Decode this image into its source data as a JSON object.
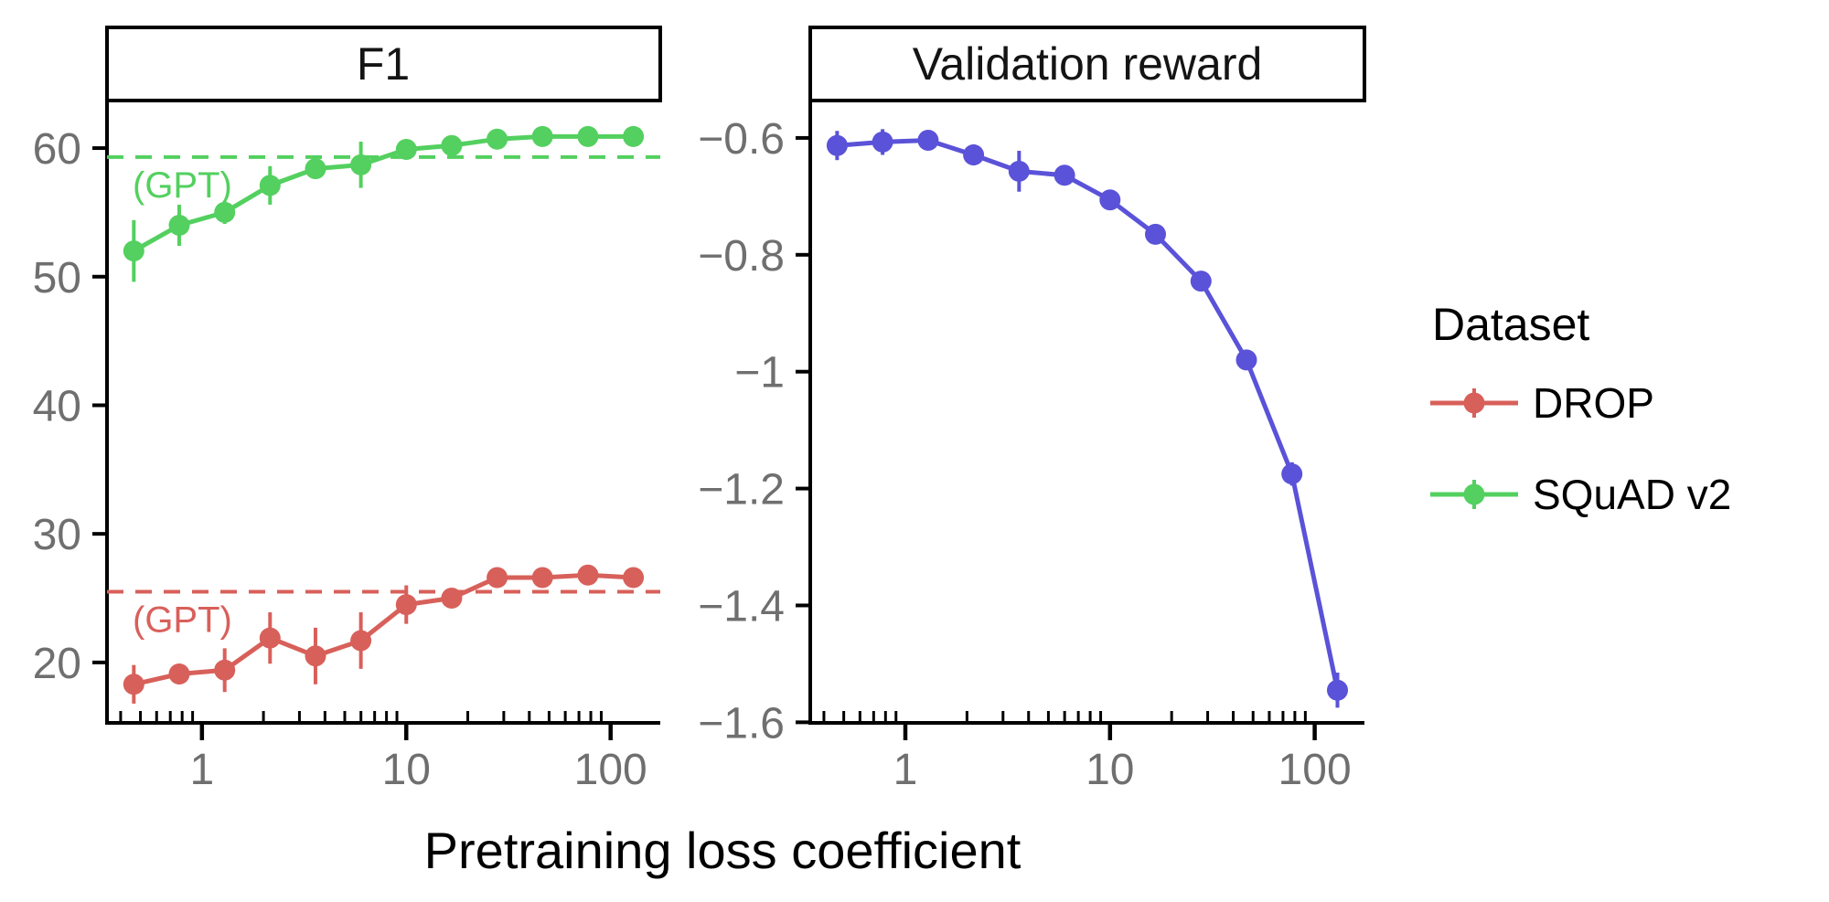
{
  "chart_data": [
    {
      "type": "line",
      "title": "F1",
      "xlabel": "Pretraining loss coefficient",
      "ylabel": "",
      "xscale": "log",
      "grid": false,
      "x": [
        0.464,
        0.774,
        1.292,
        2.154,
        3.594,
        5.995,
        10,
        16.68,
        27.83,
        46.42,
        77.43,
        129.2
      ],
      "xlim": [
        0.343,
        175
      ],
      "xticks": [
        1,
        10,
        100
      ],
      "xtick_labels": [
        "1",
        "10",
        "100"
      ],
      "x_minor_ticks": [
        0.4,
        0.5,
        0.6,
        0.7,
        0.8,
        0.9,
        2,
        3,
        4,
        5,
        6,
        7,
        8,
        9,
        20,
        30,
        40,
        50,
        60,
        70,
        80,
        90
      ],
      "ylim": [
        15.3,
        63.7
      ],
      "yticks": [
        20,
        30,
        40,
        50,
        60
      ],
      "ytick_labels": [
        "20",
        "30",
        "40",
        "50",
        "60"
      ],
      "series": [
        {
          "name": "DROP",
          "color": "#d8605a",
          "values": [
            18.3,
            19.1,
            19.4,
            21.9,
            20.5,
            21.7,
            24.5,
            25.0,
            26.6,
            26.6,
            26.8,
            26.6
          ],
          "errors": [
            1.5,
            0.8,
            1.7,
            2.0,
            2.2,
            2.2,
            1.5,
            0.7,
            0.3,
            0.3,
            0.35,
            0.3
          ],
          "gpt_baseline": 25.5,
          "gpt_label": "(GPT)"
        },
        {
          "name": "SQuAD v2",
          "color": "#53d05f",
          "values": [
            52.0,
            54.0,
            55.0,
            57.1,
            58.4,
            58.7,
            59.9,
            60.2,
            60.7,
            60.9,
            60.9,
            60.9
          ],
          "errors": [
            2.4,
            1.6,
            0.9,
            1.5,
            0.6,
            1.8,
            0.7,
            0.35,
            0.3,
            0.25,
            0.25,
            0.25
          ],
          "gpt_baseline": 59.3,
          "gpt_label": "(GPT)"
        }
      ]
    },
    {
      "type": "line",
      "title": "Validation reward",
      "xlabel": "Pretraining loss coefficient",
      "ylabel": "",
      "xscale": "log",
      "grid": false,
      "x": [
        0.464,
        0.774,
        1.292,
        2.154,
        3.594,
        5.995,
        10,
        16.68,
        27.83,
        46.42,
        77.43,
        129.2
      ],
      "xlim": [
        0.343,
        175
      ],
      "xticks": [
        1,
        10,
        100
      ],
      "xtick_labels": [
        "1",
        "10",
        "100"
      ],
      "x_minor_ticks": [
        0.4,
        0.5,
        0.6,
        0.7,
        0.8,
        0.9,
        2,
        3,
        4,
        5,
        6,
        7,
        8,
        9,
        20,
        30,
        40,
        50,
        60,
        70,
        80,
        90
      ],
      "ylim": [
        -1.601,
        -0.536
      ],
      "yticks": [
        -1.6,
        -1.4,
        -1.2,
        -1.0,
        -0.8,
        -0.6
      ],
      "ytick_labels": [
        "−1.6",
        "−1.4",
        "−1.2",
        "−1",
        "−0.8",
        "−0.6"
      ],
      "series": [
        {
          "name": "Validation reward",
          "color": "#5a52d8",
          "values": [
            -0.613,
            -0.607,
            -0.604,
            -0.629,
            -0.657,
            -0.664,
            -0.706,
            -0.765,
            -0.845,
            -0.98,
            -1.175,
            -1.545
          ],
          "errors": [
            0.025,
            0.022,
            0.012,
            0.018,
            0.035,
            0.015,
            0.012,
            0.015,
            0.012,
            0.012,
            0.02,
            0.03
          ],
          "gpt_baseline": null,
          "gpt_label": ""
        }
      ]
    }
  ],
  "legend": {
    "title": "Dataset",
    "items": [
      {
        "label": "DROP",
        "color": "#d8605a"
      },
      {
        "label": "SQuAD v2",
        "color": "#53d05f"
      }
    ]
  },
  "colors": {
    "axis": "#000000",
    "tick_label": "#6f6f6f",
    "background": "#ffffff"
  }
}
